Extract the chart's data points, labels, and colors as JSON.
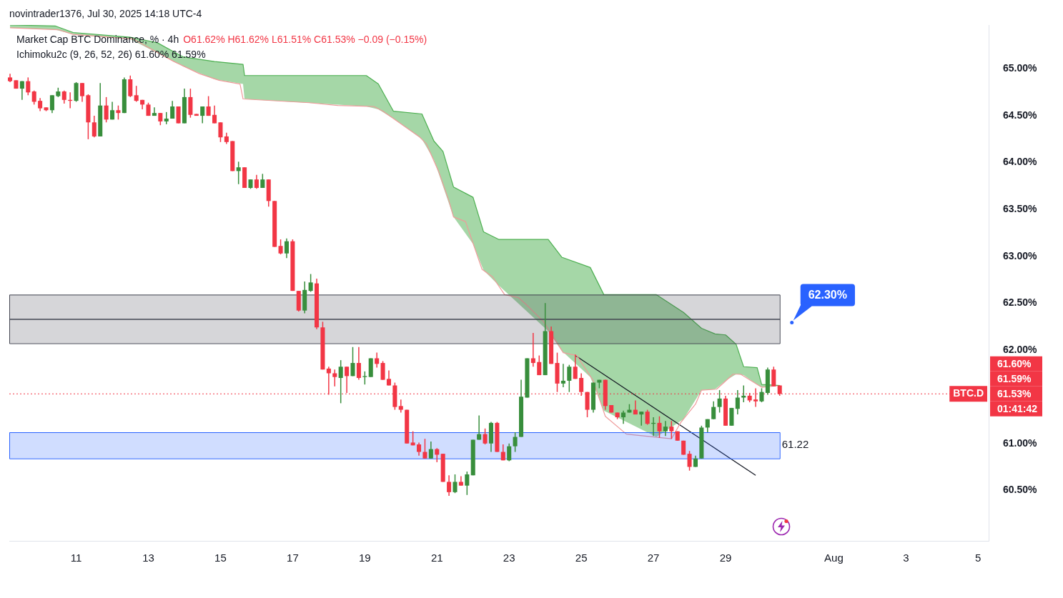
{
  "chart_data": {
    "type": "candlestick",
    "title": "Market Cap BTC Dominance, % · 4h",
    "subtitle": "O61.62% H61.62% L61.51% C61.53% −0.09 (−0.15%)",
    "annotations": [
      "novintrader1376, Jul 30, 2025 14:18 UTC-4",
      "Ichimoku2c (9, 26, 52, 26) 61.60% 61.59%",
      "62.30%",
      "61.60%",
      "61.59%",
      "61.53%",
      "01:41:42"
    ],
    "x": [
      "2025-07-09T04:00",
      "2025-07-09T08:00",
      "2025-07-09T12:00",
      "2025-07-09T16:00",
      "2025-07-09T20:00",
      "2025-07-10T00:00",
      "2025-07-10T04:00",
      "2025-07-10T08:00",
      "2025-07-10T12:00",
      "2025-07-10T16:00",
      "2025-07-10T20:00",
      "2025-07-11T00:00",
      "2025-07-11T04:00",
      "2025-07-11T08:00",
      "2025-07-11T12:00",
      "2025-07-11T16:00",
      "2025-07-11T20:00",
      "2025-07-12T00:00",
      "2025-07-12T04:00",
      "2025-07-12T08:00",
      "2025-07-12T12:00",
      "2025-07-12T16:00",
      "2025-07-12T20:00",
      "2025-07-13T00:00",
      "2025-07-13T04:00",
      "2025-07-13T08:00",
      "2025-07-13T12:00",
      "2025-07-13T16:00",
      "2025-07-13T20:00",
      "2025-07-14T00:00",
      "2025-07-14T04:00",
      "2025-07-14T08:00",
      "2025-07-14T12:00",
      "2025-07-14T16:00",
      "2025-07-14T20:00",
      "2025-07-15T00:00",
      "2025-07-15T04:00",
      "2025-07-15T08:00",
      "2025-07-15T12:00",
      "2025-07-15T16:00",
      "2025-07-15T20:00",
      "2025-07-16T00:00",
      "2025-07-16T04:00",
      "2025-07-16T08:00",
      "2025-07-16T12:00",
      "2025-07-16T16:00",
      "2025-07-16T20:00",
      "2025-07-17T00:00",
      "2025-07-17T04:00",
      "2025-07-17T08:00",
      "2025-07-17T12:00",
      "2025-07-17T16:00",
      "2025-07-17T20:00",
      "2025-07-18T00:00",
      "2025-07-18T04:00",
      "2025-07-18T08:00",
      "2025-07-18T12:00",
      "2025-07-18T16:00",
      "2025-07-18T20:00",
      "2025-07-19T00:00",
      "2025-07-19T04:00",
      "2025-07-19T08:00",
      "2025-07-19T12:00",
      "2025-07-19T16:00",
      "2025-07-19T20:00",
      "2025-07-20T00:00",
      "2025-07-20T04:00",
      "2025-07-20T08:00",
      "2025-07-20T12:00",
      "2025-07-20T16:00",
      "2025-07-20T20:00",
      "2025-07-21T00:00",
      "2025-07-21T04:00",
      "2025-07-21T08:00",
      "2025-07-21T12:00",
      "2025-07-21T16:00",
      "2025-07-21T20:00",
      "2025-07-22T00:00",
      "2025-07-22T04:00",
      "2025-07-22T08:00",
      "2025-07-22T12:00",
      "2025-07-22T16:00",
      "2025-07-22T20:00",
      "2025-07-23T00:00",
      "2025-07-23T04:00",
      "2025-07-23T08:00",
      "2025-07-23T12:00",
      "2025-07-23T16:00",
      "2025-07-23T20:00",
      "2025-07-24T00:00",
      "2025-07-24T04:00",
      "2025-07-24T08:00",
      "2025-07-24T12:00",
      "2025-07-24T16:00",
      "2025-07-24T20:00",
      "2025-07-25T00:00",
      "2025-07-25T04:00",
      "2025-07-25T08:00",
      "2025-07-25T12:00",
      "2025-07-25T16:00",
      "2025-07-25T20:00",
      "2025-07-26T00:00",
      "2025-07-26T04:00",
      "2025-07-26T08:00",
      "2025-07-26T12:00",
      "2025-07-26T16:00",
      "2025-07-26T20:00",
      "2025-07-27T00:00",
      "2025-07-27T04:00",
      "2025-07-27T08:00",
      "2025-07-27T12:00",
      "2025-07-27T16:00",
      "2025-07-27T20:00",
      "2025-07-28T00:00",
      "2025-07-28T04:00",
      "2025-07-28T08:00",
      "2025-07-28T12:00",
      "2025-07-28T16:00",
      "2025-07-28T20:00",
      "2025-07-29T00:00",
      "2025-07-29T04:00",
      "2025-07-29T08:00",
      "2025-07-29T12:00",
      "2025-07-29T16:00",
      "2025-07-29T20:00",
      "2025-07-30T00:00",
      "2025-07-30T04:00",
      "2025-07-30T08:00",
      "2025-07-30T12:00"
    ],
    "ohlc": [
      [
        64.91,
        64.95,
        64.86,
        64.87
      ],
      [
        64.88,
        64.88,
        64.79,
        64.79
      ],
      [
        64.79,
        64.87,
        64.67,
        64.87
      ],
      [
        64.87,
        64.91,
        64.72,
        64.75
      ],
      [
        64.76,
        64.77,
        64.62,
        64.65
      ],
      [
        64.66,
        64.69,
        64.55,
        64.58
      ],
      [
        64.59,
        64.59,
        64.55,
        64.56
      ],
      [
        64.56,
        64.72,
        64.53,
        64.72
      ],
      [
        64.71,
        64.8,
        64.7,
        64.76
      ],
      [
        64.76,
        64.77,
        64.63,
        64.67
      ],
      [
        64.67,
        64.75,
        64.58,
        64.66
      ],
      [
        64.66,
        64.86,
        64.65,
        64.85
      ],
      [
        64.85,
        64.85,
        64.65,
        64.71
      ],
      [
        64.72,
        64.73,
        64.25,
        64.43
      ],
      [
        64.43,
        64.5,
        64.27,
        64.28
      ],
      [
        64.28,
        64.85,
        64.28,
        64.61
      ],
      [
        64.61,
        64.7,
        64.43,
        64.46
      ],
      [
        64.46,
        64.65,
        64.46,
        64.56
      ],
      [
        64.56,
        64.61,
        64.46,
        64.53
      ],
      [
        64.53,
        64.91,
        64.53,
        64.89
      ],
      [
        64.89,
        64.93,
        64.7,
        64.71
      ],
      [
        64.72,
        64.82,
        64.65,
        64.66
      ],
      [
        64.67,
        64.67,
        64.57,
        64.62
      ],
      [
        64.62,
        64.64,
        64.5,
        64.5
      ],
      [
        64.5,
        64.59,
        64.5,
        64.53
      ],
      [
        64.53,
        64.53,
        64.4,
        64.44
      ],
      [
        64.44,
        64.54,
        64.41,
        64.47
      ],
      [
        64.47,
        64.66,
        64.47,
        64.6
      ],
      [
        64.6,
        64.6,
        64.42,
        64.42
      ],
      [
        64.42,
        64.79,
        64.42,
        64.7
      ],
      [
        64.7,
        64.79,
        64.48,
        64.51
      ],
      [
        64.52,
        64.52,
        64.5,
        64.5
      ],
      [
        64.5,
        64.6,
        64.42,
        64.6
      ],
      [
        64.6,
        64.71,
        64.5,
        64.5
      ],
      [
        64.51,
        64.61,
        64.42,
        64.42
      ],
      [
        64.43,
        64.43,
        64.22,
        64.27
      ],
      [
        64.28,
        64.32,
        64.2,
        64.22
      ],
      [
        64.23,
        64.23,
        63.91,
        63.91
      ],
      [
        63.91,
        64.01,
        63.77,
        63.95
      ],
      [
        63.95,
        63.95,
        63.73,
        63.73
      ],
      [
        63.73,
        63.82,
        63.72,
        63.82
      ],
      [
        63.82,
        63.87,
        63.72,
        63.73
      ],
      [
        63.73,
        63.88,
        63.73,
        63.82
      ],
      [
        63.82,
        63.82,
        63.53,
        63.59
      ],
      [
        63.59,
        63.59,
        63.1,
        63.1
      ],
      [
        63.11,
        63.18,
        63.02,
        63.03
      ],
      [
        63.03,
        63.19,
        62.98,
        63.16
      ],
      [
        63.16,
        63.18,
        62.63,
        62.63
      ],
      [
        62.63,
        62.63,
        62.41,
        62.42
      ],
      [
        62.42,
        62.73,
        62.39,
        62.64
      ],
      [
        62.63,
        62.81,
        62.62,
        62.72
      ],
      [
        62.71,
        62.76,
        62.22,
        62.24
      ],
      [
        62.24,
        62.3,
        61.79,
        61.79
      ],
      [
        61.8,
        61.82,
        61.52,
        61.75
      ],
      [
        61.75,
        61.79,
        61.61,
        61.71
      ],
      [
        61.7,
        61.89,
        61.43,
        61.82
      ],
      [
        61.82,
        61.82,
        61.54,
        61.72
      ],
      [
        61.72,
        62.03,
        61.72,
        61.86
      ],
      [
        61.86,
        62.03,
        61.68,
        61.7
      ],
      [
        61.71,
        61.77,
        61.63,
        61.72
      ],
      [
        61.71,
        61.91,
        61.71,
        61.91
      ],
      [
        61.91,
        61.97,
        61.81,
        61.85
      ],
      [
        61.86,
        61.88,
        61.68,
        61.68
      ],
      [
        61.69,
        61.78,
        61.62,
        61.62
      ],
      [
        61.62,
        61.65,
        61.36,
        61.39
      ],
      [
        61.4,
        61.47,
        61.33,
        61.36
      ],
      [
        61.36,
        61.36,
        61.0,
        61.0
      ],
      [
        61.01,
        61.13,
        60.98,
        60.98
      ],
      [
        60.99,
        61.01,
        60.87,
        60.91
      ],
      [
        60.91,
        61.05,
        60.84,
        60.84
      ],
      [
        60.84,
        61.02,
        60.84,
        60.94
      ],
      [
        60.94,
        60.95,
        60.8,
        60.88
      ],
      [
        60.89,
        60.89,
        60.59,
        60.59
      ],
      [
        60.59,
        60.66,
        60.44,
        60.48
      ],
      [
        60.48,
        60.67,
        60.47,
        60.59
      ],
      [
        60.59,
        60.65,
        60.55,
        60.55
      ],
      [
        60.55,
        60.7,
        60.45,
        60.67
      ],
      [
        60.66,
        61.04,
        60.66,
        61.04
      ],
      [
        61.04,
        61.3,
        61.04,
        61.1
      ],
      [
        61.1,
        61.16,
        60.99,
        61.0
      ],
      [
        61.0,
        61.23,
        60.91,
        61.22
      ],
      [
        61.22,
        61.23,
        60.91,
        60.91
      ],
      [
        60.91,
        60.99,
        60.82,
        60.82
      ],
      [
        60.82,
        61.0,
        60.81,
        60.97
      ],
      [
        60.97,
        61.12,
        60.91,
        61.07
      ],
      [
        61.07,
        61.68,
        61.07,
        61.5
      ],
      [
        61.49,
        61.91,
        61.49,
        61.91
      ],
      [
        61.91,
        62.18,
        61.82,
        61.86
      ],
      [
        61.87,
        61.94,
        61.73,
        61.73
      ],
      [
        61.73,
        62.5,
        61.73,
        62.2
      ],
      [
        62.2,
        62.25,
        61.85,
        61.85
      ],
      [
        61.86,
        61.97,
        61.55,
        61.64
      ],
      [
        61.64,
        61.85,
        61.6,
        61.67
      ],
      [
        61.67,
        61.84,
        61.55,
        61.82
      ],
      [
        61.82,
        61.95,
        61.69,
        61.69
      ],
      [
        61.7,
        61.75,
        61.51,
        61.55
      ],
      [
        61.55,
        61.55,
        61.28,
        61.36
      ],
      [
        61.36,
        61.65,
        61.33,
        61.65
      ],
      [
        61.65,
        61.68,
        61.59,
        61.68
      ],
      [
        61.68,
        61.68,
        61.36,
        61.4
      ],
      [
        61.41,
        61.41,
        61.33,
        61.33
      ],
      [
        61.33,
        61.33,
        61.26,
        61.28
      ],
      [
        61.28,
        61.35,
        61.21,
        61.33
      ],
      [
        61.33,
        61.42,
        61.33,
        61.36
      ],
      [
        61.36,
        61.46,
        61.31,
        61.31
      ],
      [
        61.31,
        61.34,
        61.19,
        61.34
      ],
      [
        61.34,
        61.36,
        61.2,
        61.21
      ],
      [
        61.21,
        61.28,
        61.08,
        61.22
      ],
      [
        61.22,
        61.29,
        61.06,
        61.13
      ],
      [
        61.13,
        61.24,
        61.08,
        61.18
      ],
      [
        61.18,
        61.24,
        61.05,
        61.13
      ],
      [
        61.13,
        61.13,
        61.03,
        61.03
      ],
      [
        61.03,
        61.03,
        60.88,
        60.88
      ],
      [
        60.89,
        60.92,
        60.71,
        60.75
      ],
      [
        60.75,
        60.87,
        60.75,
        60.84
      ],
      [
        60.84,
        61.19,
        60.84,
        61.17
      ],
      [
        61.17,
        61.26,
        61.12,
        61.26
      ],
      [
        61.26,
        61.45,
        61.26,
        61.39
      ],
      [
        61.39,
        61.57,
        61.33,
        61.48
      ],
      [
        61.48,
        61.51,
        61.19,
        61.19
      ],
      [
        61.19,
        61.38,
        61.19,
        61.38
      ],
      [
        61.37,
        61.57,
        61.31,
        61.49
      ],
      [
        61.49,
        61.62,
        61.44,
        61.51
      ],
      [
        61.51,
        61.54,
        61.44,
        61.46
      ],
      [
        61.47,
        61.59,
        61.39,
        61.45
      ],
      [
        61.45,
        61.59,
        61.44,
        61.55
      ],
      [
        61.54,
        61.81,
        61.52,
        61.79
      ],
      [
        61.79,
        61.82,
        61.61,
        61.61
      ],
      [
        61.62,
        61.62,
        61.51,
        61.53
      ]
    ],
    "colors": [
      "#f23645",
      "#f23645",
      "#388e3c",
      "#f23645",
      "#f23645",
      "#f23645",
      "#f23645",
      "#388e3c",
      "#388e3c",
      "#f23645",
      "#f23645",
      "#388e3c",
      "#f23645",
      "#f23645",
      "#f23645",
      "#388e3c",
      "#f23645",
      "#388e3c",
      "#f23645",
      "#388e3c",
      "#f23645",
      "#f23645",
      "#f23645",
      "#f23645",
      "#388e3c",
      "#f23645",
      "#388e3c",
      "#388e3c",
      "#f23645",
      "#388e3c",
      "#f23645",
      "#f23645",
      "#388e3c",
      "#f23645",
      "#f23645",
      "#f23645",
      "#f23645",
      "#f23645",
      "#388e3c",
      "#f23645",
      "#388e3c",
      "#f23645",
      "#388e3c",
      "#f23645",
      "#f23645",
      "#f23645",
      "#388e3c",
      "#f23645",
      "#f23645",
      "#388e3c",
      "#388e3c",
      "#f23645",
      "#f23645",
      "#f23645",
      "#f23645",
      "#388e3c",
      "#f23645",
      "#388e3c",
      "#f23645",
      "#388e3c",
      "#388e3c",
      "#f23645",
      "#f23645",
      "#f23645",
      "#f23645",
      "#f23645",
      "#f23645",
      "#f23645",
      "#f23645",
      "#f23645",
      "#388e3c",
      "#f23645",
      "#f23645",
      "#f23645",
      "#388e3c",
      "#f23645",
      "#388e3c",
      "#388e3c",
      "#388e3c",
      "#f23645",
      "#388e3c",
      "#f23645",
      "#f23645",
      "#388e3c",
      "#388e3c",
      "#388e3c",
      "#388e3c",
      "#f23645",
      "#f23645",
      "#388e3c",
      "#f23645",
      "#f23645",
      "#388e3c",
      "#388e3c",
      "#f23645",
      "#f23645",
      "#f23645",
      "#388e3c",
      "#388e3c",
      "#f23645",
      "#f23645",
      "#f23645",
      "#388e3c",
      "#388e3c",
      "#f23645",
      "#388e3c",
      "#f23645",
      "#388e3c",
      "#f23645",
      "#388e3c",
      "#f23645",
      "#f23645",
      "#f23645",
      "#f23645",
      "#388e3c",
      "#388e3c",
      "#388e3c",
      "#388e3c",
      "#388e3c",
      "#f23645",
      "#388e3c",
      "#388e3c",
      "#388e3c",
      "#f23645",
      "#f23645",
      "#388e3c",
      "#388e3c",
      "#f23645",
      "#f23645"
    ],
    "series": [
      {
        "type": "line",
        "color": "#4caf50",
        "x": [
          "2025-07-09T04:00",
          "2025-07-10T10:00",
          "2025-07-10T22:00",
          "2025-07-12T12:00",
          "2025-07-13T06:00",
          "2025-07-13T23:00",
          "2025-07-14T20:00",
          "2025-07-15T15:00",
          "2025-07-15T16:00",
          "2025-07-19T01:00",
          "2025-07-19T09:00",
          "2025-07-19T19:00",
          "2025-07-20T14:00",
          "2025-07-20T22:00",
          "2025-07-21T04:00",
          "2025-07-21T11:00",
          "2025-07-22T00:00",
          "2025-07-22T07:00",
          "2025-07-22T17:00",
          "2025-07-24T02:00",
          "2025-07-24T11:00",
          "2025-07-25T06:00",
          "2025-07-25T15:00",
          "2025-07-27T02:00",
          "2025-07-27T20:00",
          "2025-07-28T08:00",
          "2025-07-28T17:00",
          "2025-07-29T00:00",
          "2025-07-29T07:00",
          "2025-07-29T12:00",
          "2025-07-29T21:00",
          "2025-07-30T00:00",
          "2025-07-30T12:00"
        ],
        "values": [
          65.47,
          65.46,
          65.39,
          65.34,
          65.28,
          65.13,
          65.08,
          65.05,
          64.93,
          64.93,
          64.84,
          64.55,
          64.52,
          64.23,
          64.12,
          63.74,
          63.63,
          63.26,
          63.18,
          63.18,
          62.99,
          62.88,
          62.59,
          62.59,
          62.4,
          62.23,
          62.17,
          62.16,
          62.06,
          61.82,
          61.81,
          61.63,
          61.62
        ],
        "lower": [
          65.44,
          65.42,
          65.37,
          65.32,
          65.17,
          65.03,
          64.89,
          64.84,
          64.68,
          64.6,
          64.57,
          64.47,
          64.25,
          64.03,
          63.75,
          63.42,
          63.13,
          62.85,
          62.69,
          62.2,
          61.99,
          61.71,
          61.35,
          61.07,
          61.26,
          61.57,
          61.58,
          61.67,
          61.74,
          61.73,
          61.63,
          61.6,
          61.62
        ],
        "upper": [
          65.47,
          65.46,
          65.39,
          65.34,
          65.28,
          65.13,
          65.08,
          65.05,
          64.93,
          64.93,
          64.84,
          64.55,
          64.52,
          64.23,
          64.12,
          63.74,
          63.63,
          63.26,
          63.18,
          63.18,
          62.99,
          62.88,
          62.59,
          62.59,
          62.4,
          62.23,
          62.17,
          62.16,
          62.06,
          61.82,
          61.81,
          61.63,
          61.62
        ]
      },
      {
        "type": "line",
        "color": "#ef9a9a",
        "x": [
          "2025-07-09T04:00",
          "2025-07-10T12:00",
          "2025-07-10T22:00",
          "2025-07-12T14:00",
          "2025-07-13T17:00",
          "2025-07-14T10:00",
          "2025-07-14T23:00",
          "2025-07-15T13:00",
          "2025-07-15T15:00",
          "2025-07-17T11:00",
          "2025-07-18T06:00",
          "2025-07-19T06:00",
          "2025-07-19T12:00",
          "2025-07-20T12:00",
          "2025-07-20T17:00",
          "2025-07-21T01:00",
          "2025-07-21T08:00",
          "2025-07-21T11:00",
          "2025-07-21T19:00",
          "2025-07-22T06:00",
          "2025-07-22T13:00",
          "2025-07-22T21:00",
          "2025-07-23T06:00",
          "2025-07-23T11:00",
          "2025-07-23T23:00",
          "2025-07-24T12:00",
          "2025-07-24T21:00",
          "2025-07-25T08:00",
          "2025-07-25T16:00",
          "2025-07-26T06:00",
          "2025-07-27T12:00",
          "2025-07-27T18:00",
          "2025-07-28T04:00",
          "2025-07-28T08:00",
          "2025-07-28T18:00",
          "2025-07-29T05:00",
          "2025-07-29T10:00",
          "2025-07-30T00:00",
          "2025-07-30T12:00"
        ],
        "values": [
          65.44,
          65.42,
          65.37,
          65.32,
          65.08,
          64.95,
          64.88,
          64.84,
          64.68,
          64.64,
          64.61,
          64.6,
          64.55,
          64.28,
          64.2,
          63.91,
          63.59,
          63.42,
          63.37,
          62.86,
          62.78,
          62.59,
          62.56,
          62.49,
          62.3,
          61.97,
          61.94,
          61.67,
          61.29,
          61.1,
          61.05,
          61.22,
          61.42,
          61.57,
          61.58,
          61.74,
          61.74,
          61.6,
          61.62
        ]
      },
      {
        "type": "line",
        "color": "#131722",
        "x": [
          "2025-07-24T20:00",
          "2025-07-29T20:00"
        ],
        "values": [
          61.94,
          60.66
        ]
      }
    ],
    "bands": [
      {
        "axis": "y",
        "from": 62.33,
        "to": 62.59,
        "color": "#434651"
      },
      {
        "axis": "y",
        "from": 62.07,
        "to": 62.33,
        "color": "#434651"
      },
      {
        "axis": "y",
        "from": 60.84,
        "to": 61.12,
        "color": "#2962ff",
        "label": "61.22"
      }
    ],
    "ref_lines": [
      {
        "axis": "y",
        "value": 61.53,
        "label": "BTC.D",
        "color": "#f23645",
        "line_style": "dotted"
      }
    ],
    "xlim": [
      "2025-07-09T03:30",
      "2025-08-05T07:00"
    ],
    "ylim": [
      59.96,
      65.47
    ],
    "xticks": [
      {
        "value": "2025-07-11",
        "label": "11"
      },
      {
        "value": "2025-07-13",
        "label": "13"
      },
      {
        "value": "2025-07-15",
        "label": "15"
      },
      {
        "value": "2025-07-17",
        "label": "17"
      },
      {
        "value": "2025-07-19",
        "label": "19"
      },
      {
        "value": "2025-07-21",
        "label": "21"
      },
      {
        "value": "2025-07-23",
        "label": "23"
      },
      {
        "value": "2025-07-25",
        "label": "25"
      },
      {
        "value": "2025-07-27",
        "label": "27"
      },
      {
        "value": "2025-07-29",
        "label": "29"
      },
      {
        "value": "2025-08-01",
        "label": "Aug"
      },
      {
        "value": "2025-08-03",
        "label": "3"
      },
      {
        "value": "2025-08-05",
        "label": "5"
      }
    ],
    "yticks": [
      {
        "value": 60.5,
        "label": "60.50%"
      },
      {
        "value": 61,
        "label": "61.00%"
      },
      {
        "value": 62,
        "label": "62.00%"
      },
      {
        "value": 62.5,
        "label": "62.50%"
      },
      {
        "value": 63,
        "label": "63.00%"
      },
      {
        "value": 63.5,
        "label": "63.50%"
      },
      {
        "value": 64,
        "label": "64.00%"
      },
      {
        "value": 64.5,
        "label": "64.50%"
      },
      {
        "value": 65,
        "label": "65.00%"
      }
    ]
  }
}
